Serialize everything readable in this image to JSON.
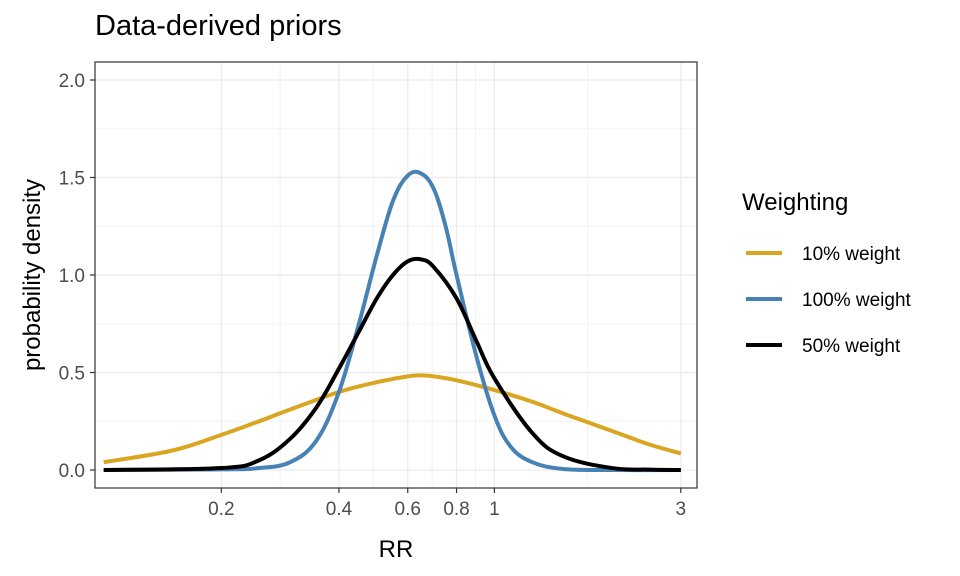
{
  "chart_data": {
    "type": "line",
    "title": "Data-derived priors",
    "xlabel": "RR",
    "ylabel": "probability density",
    "x_scale": "log",
    "xlim": [
      0.095,
      3.3
    ],
    "ylim": [
      0,
      2.0
    ],
    "x_ticks": [
      {
        "value": 0.2,
        "label": "0.2"
      },
      {
        "value": 0.4,
        "label": "0.4"
      },
      {
        "value": 0.6,
        "label": "0.6"
      },
      {
        "value": 0.8,
        "label": "0.8"
      },
      {
        "value": 1,
        "label": "1"
      },
      {
        "value": 3,
        "label": "3"
      }
    ],
    "y_ticks": [
      {
        "value": 0.0,
        "label": "0.0"
      },
      {
        "value": 0.5,
        "label": "0.5"
      },
      {
        "value": 1.0,
        "label": "1.0"
      },
      {
        "value": 1.5,
        "label": "1.5"
      },
      {
        "value": 2.0,
        "label": "2.0"
      }
    ],
    "grid": true,
    "legend": {
      "title": "Weighting",
      "position": "right"
    },
    "series": [
      {
        "name": "10% weight",
        "color": "#DAA520",
        "x": [
          0.1,
          0.15,
          0.2,
          0.25,
          0.3,
          0.4,
          0.5,
          0.6,
          0.65,
          0.7,
          0.8,
          1.0,
          1.25,
          1.5,
          2.0,
          2.5,
          3.0
        ],
        "y": [
          0.04,
          0.1,
          0.18,
          0.25,
          0.31,
          0.4,
          0.45,
          0.48,
          0.485,
          0.48,
          0.46,
          0.41,
          0.35,
          0.29,
          0.2,
          0.13,
          0.085
        ]
      },
      {
        "name": "100% weight",
        "color": "#4682B4",
        "x": [
          0.1,
          0.2,
          0.25,
          0.3,
          0.35,
          0.4,
          0.45,
          0.5,
          0.55,
          0.6,
          0.65,
          0.7,
          0.75,
          0.8,
          0.9,
          1.0,
          1.1,
          1.25,
          1.5,
          2.0,
          3.0
        ],
        "y": [
          0.0,
          0.003,
          0.01,
          0.04,
          0.15,
          0.4,
          0.75,
          1.1,
          1.38,
          1.51,
          1.52,
          1.44,
          1.25,
          1.0,
          0.58,
          0.28,
          0.12,
          0.04,
          0.005,
          0.0,
          0.0
        ]
      },
      {
        "name": "50% weight",
        "color": "#000000",
        "x": [
          0.1,
          0.2,
          0.25,
          0.3,
          0.35,
          0.4,
          0.45,
          0.5,
          0.55,
          0.6,
          0.65,
          0.7,
          0.8,
          0.9,
          1.0,
          1.25,
          1.5,
          2.0,
          2.5,
          3.0
        ],
        "y": [
          0.0,
          0.01,
          0.05,
          0.16,
          0.32,
          0.52,
          0.71,
          0.88,
          1.0,
          1.07,
          1.08,
          1.04,
          0.88,
          0.66,
          0.47,
          0.19,
          0.07,
          0.01,
          0.002,
          0.0
        ]
      }
    ]
  }
}
